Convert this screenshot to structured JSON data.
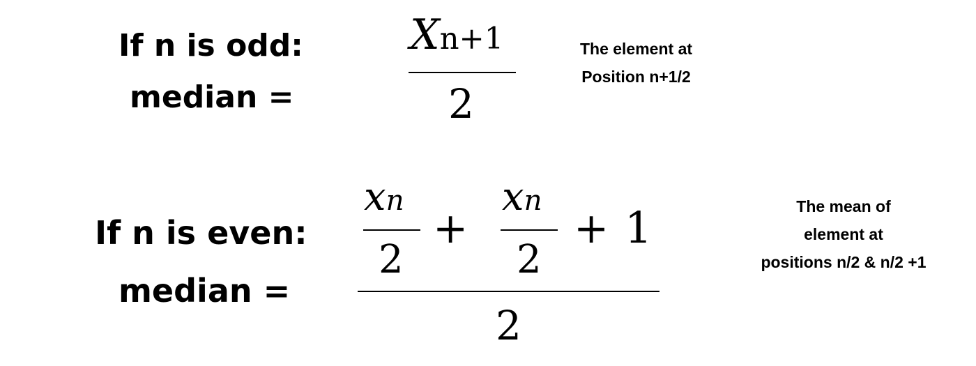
{
  "odd": {
    "condition": "If n is odd:",
    "median_label": "median =",
    "formula": {
      "numerator_var": "X",
      "numerator_sub": "n+1",
      "denominator": "2"
    },
    "note": [
      "The element at",
      "Position n+1/2"
    ]
  },
  "even": {
    "condition": "If n is even:",
    "median_label": "median =",
    "formula": {
      "term1_var": "x",
      "term1_sub": "n",
      "term1_den": "2",
      "plus1": "+",
      "term2_var": "x",
      "term2_sub": "n",
      "term2_den": "2",
      "plus2": "+",
      "const": "1",
      "denominator": "2"
    },
    "note": [
      "The mean of",
      "element at",
      "positions n/2 & n/2 +1"
    ]
  }
}
